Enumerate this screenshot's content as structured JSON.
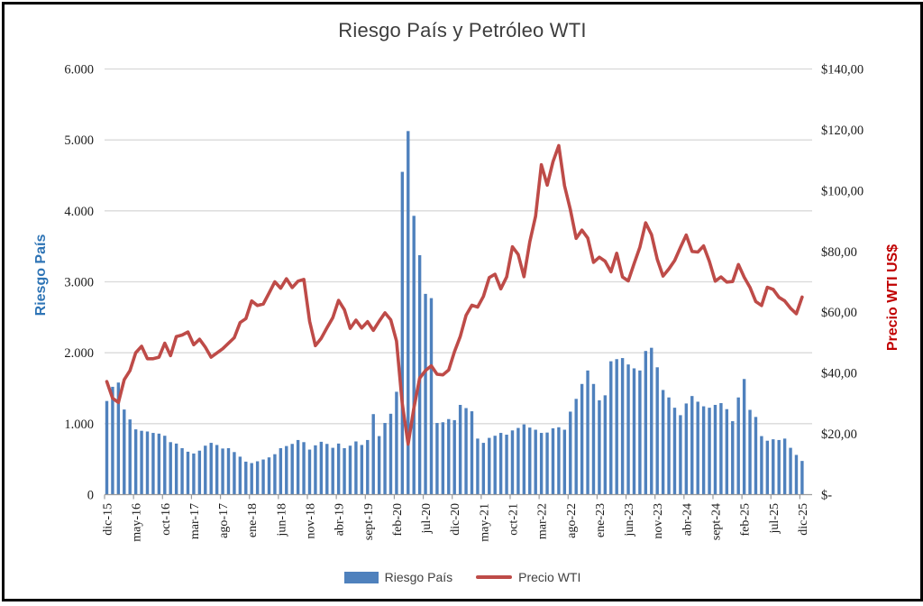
{
  "chart_data": {
    "type": "bar+line combo",
    "title": "Riesgo País y Petróleo WTI",
    "grid": true,
    "legend_position": "bottom",
    "left_axis": {
      "title": "Riesgo País",
      "min": 0,
      "max": 6000,
      "step": 1000,
      "ticks": [
        "6.000",
        "5.000",
        "4.000",
        "3.000",
        "2.000",
        "1.000",
        "0"
      ]
    },
    "right_axis": {
      "title": "Precio WTI US$",
      "min": 0,
      "max": 140,
      "step": 20,
      "ticks": [
        "$140,00",
        "$120,00",
        "$100,00",
        "$80,00",
        "$60,00",
        "$40,00",
        "$20,00",
        "$-"
      ]
    },
    "x_tick_labels": [
      "dic-15",
      "may-16",
      "oct-16",
      "mar-17",
      "ago-17",
      "ene-18",
      "jun-18",
      "nov-18",
      "abr-19",
      "sept-19",
      "feb-20",
      "jul-20",
      "dic-20",
      "may-21",
      "oct-21",
      "mar-22",
      "ago-22",
      "ene-23",
      "jun-23",
      "nov-23",
      "abr-24",
      "sept-24",
      "feb-25",
      "jul-25",
      "dic-25"
    ],
    "x_tick_every": 5,
    "categories": [
      "dic-15",
      "ene-16",
      "feb-16",
      "mar-16",
      "abr-16",
      "may-16",
      "jun-16",
      "jul-16",
      "ago-16",
      "sept-16",
      "oct-16",
      "nov-16",
      "dic-16",
      "ene-17",
      "feb-17",
      "mar-17",
      "abr-17",
      "may-17",
      "jun-17",
      "jul-17",
      "ago-17",
      "sept-17",
      "oct-17",
      "nov-17",
      "dic-17",
      "ene-18",
      "feb-18",
      "mar-18",
      "abr-18",
      "may-18",
      "jun-18",
      "jul-18",
      "ago-18",
      "sept-18",
      "oct-18",
      "nov-18",
      "dic-18",
      "ene-19",
      "feb-19",
      "mar-19",
      "abr-19",
      "may-19",
      "jun-19",
      "jul-19",
      "ago-19",
      "sept-19",
      "oct-19",
      "nov-19",
      "dic-19",
      "ene-20",
      "feb-20",
      "mar-20",
      "abr-20",
      "may-20",
      "jun-20",
      "jul-20",
      "ago-20",
      "sept-20",
      "oct-20",
      "nov-20",
      "dic-20",
      "ene-21",
      "feb-21",
      "mar-21",
      "abr-21",
      "may-21",
      "jun-21",
      "jul-21",
      "ago-21",
      "sept-21",
      "oct-21",
      "nov-21",
      "dic-21",
      "ene-22",
      "feb-22",
      "mar-22",
      "abr-22",
      "may-22",
      "jun-22",
      "jul-22",
      "ago-22",
      "sept-22",
      "oct-22",
      "nov-22",
      "dic-22",
      "ene-23",
      "feb-23",
      "mar-23",
      "abr-23",
      "may-23",
      "jun-23",
      "jul-23",
      "ago-23",
      "sept-23",
      "oct-23",
      "nov-23",
      "dic-23",
      "ene-24",
      "feb-24",
      "mar-24",
      "abr-24",
      "may-24",
      "jun-24",
      "jul-24",
      "ago-24",
      "sept-24",
      "oct-24",
      "nov-24",
      "dic-24",
      "ene-25",
      "feb-25",
      "mar-25",
      "abr-25",
      "may-25",
      "jun-25",
      "jul-25",
      "ago-25",
      "sept-25",
      "oct-25",
      "nov-25",
      "dic-25"
    ],
    "series": [
      {
        "name": "Riesgo País",
        "type": "bar",
        "axis": "left",
        "color": "#4f81bd",
        "values": [
          1320,
          1520,
          1580,
          1200,
          1060,
          920,
          900,
          890,
          870,
          860,
          830,
          740,
          720,
          655,
          605,
          580,
          620,
          690,
          730,
          700,
          650,
          655,
          600,
          535,
          465,
          445,
          470,
          495,
          525,
          570,
          655,
          685,
          715,
          770,
          740,
          635,
          695,
          745,
          715,
          660,
          720,
          655,
          690,
          750,
          700,
          770,
          1135,
          825,
          1010,
          1140,
          1450,
          4550,
          5125,
          3930,
          3375,
          2830,
          2770,
          1010,
          1020,
          1065,
          1050,
          1265,
          1220,
          1175,
          790,
          730,
          800,
          830,
          870,
          845,
          905,
          940,
          990,
          945,
          915,
          870,
          875,
          935,
          950,
          915,
          1170,
          1350,
          1560,
          1750,
          1560,
          1330,
          1400,
          1880,
          1910,
          1925,
          1835,
          1780,
          1750,
          2025,
          2070,
          1795,
          1475,
          1370,
          1225,
          1120,
          1285,
          1390,
          1310,
          1245,
          1225,
          1265,
          1290,
          1205,
          1035,
          1370,
          1630,
          1195,
          1095,
          825,
          760,
          780,
          770,
          790,
          660,
          560,
          475
        ]
      },
      {
        "name": "Precio WTI",
        "type": "line",
        "axis": "right",
        "color": "#be4b48",
        "values": [
          37.2,
          31.7,
          30.3,
          37.8,
          40.8,
          46.7,
          48.8,
          44.7,
          44.7,
          45.2,
          49.8,
          45.7,
          52.0,
          52.5,
          53.5,
          49.3,
          51.1,
          48.5,
          45.2,
          46.6,
          48.0,
          49.8,
          51.6,
          56.6,
          57.9,
          63.7,
          62.2,
          62.7,
          66.3,
          70.0,
          67.9,
          71.0,
          68.1,
          70.2,
          70.8,
          57.0,
          49.0,
          51.4,
          54.9,
          58.2,
          63.9,
          60.8,
          54.7,
          57.4,
          54.8,
          56.9,
          54.0,
          57.0,
          59.8,
          57.5,
          50.5,
          29.9,
          16.6,
          28.6,
          38.3,
          40.8,
          42.4,
          39.6,
          39.4,
          41.0,
          47.0,
          52.0,
          59.0,
          62.3,
          61.7,
          65.2,
          71.4,
          72.5,
          67.7,
          71.6,
          81.5,
          79.0,
          71.7,
          83.2,
          91.6,
          108.5,
          101.8,
          109.5,
          114.8,
          101.6,
          93.7,
          84.3,
          87.0,
          84.4,
          76.4,
          78.1,
          76.8,
          73.3,
          79.4,
          71.6,
          70.3,
          76.0,
          81.4,
          89.4,
          85.5,
          77.4,
          71.9,
          74.2,
          77.0,
          81.3,
          85.4,
          80.0,
          79.8,
          81.8,
          76.7,
          70.2,
          71.6,
          69.9,
          70.1,
          75.7,
          71.5,
          68.2,
          63.5,
          62.2,
          68.2,
          67.5,
          64.9,
          63.7,
          61.3,
          59.5,
          65.0
        ]
      }
    ]
  }
}
